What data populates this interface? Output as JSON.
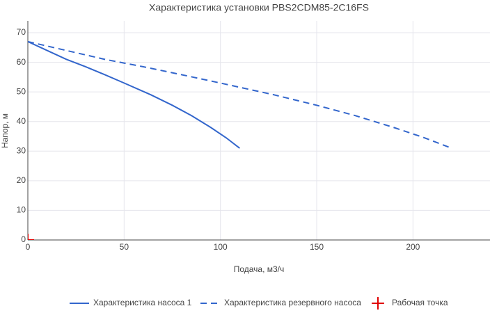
{
  "chart_data": {
    "type": "line",
    "title": "Характеристика установки PBS2CDM85-2C16FS",
    "x_label": "Подача, м3/ч",
    "y_label": "Напор, м",
    "xlim": [
      0,
      240
    ],
    "xticks": [
      0,
      50,
      100,
      150,
      200
    ],
    "ylim": [
      0,
      74
    ],
    "yticks": [
      0,
      10,
      20,
      30,
      40,
      50,
      60,
      70
    ],
    "grid": true,
    "legend": "bottom",
    "series": [
      {
        "name": "Характеристика насоса 1",
        "color": "#3366cc",
        "dash": "solid",
        "x": [
          0,
          10,
          20,
          30,
          40,
          50,
          64,
          75,
          85,
          95,
          103,
          110
        ],
        "values": [
          67,
          64,
          61,
          58.5,
          55.8,
          53,
          49,
          45.5,
          42,
          38,
          34.5,
          31
        ]
      },
      {
        "name": "Характеристика резервного насоса",
        "color": "#3366cc",
        "dash": "dash",
        "x": [
          0,
          20,
          40,
          60,
          80,
          100,
          128,
          150,
          170,
          190,
          206,
          220
        ],
        "values": [
          67,
          64,
          61,
          58.5,
          55.8,
          53,
          49,
          45.5,
          42,
          38,
          34.5,
          31
        ]
      },
      {
        "name": "Рабочая точка",
        "color": "#e00000",
        "dash": "markers",
        "x": [
          0
        ],
        "values": [
          0
        ]
      }
    ]
  }
}
